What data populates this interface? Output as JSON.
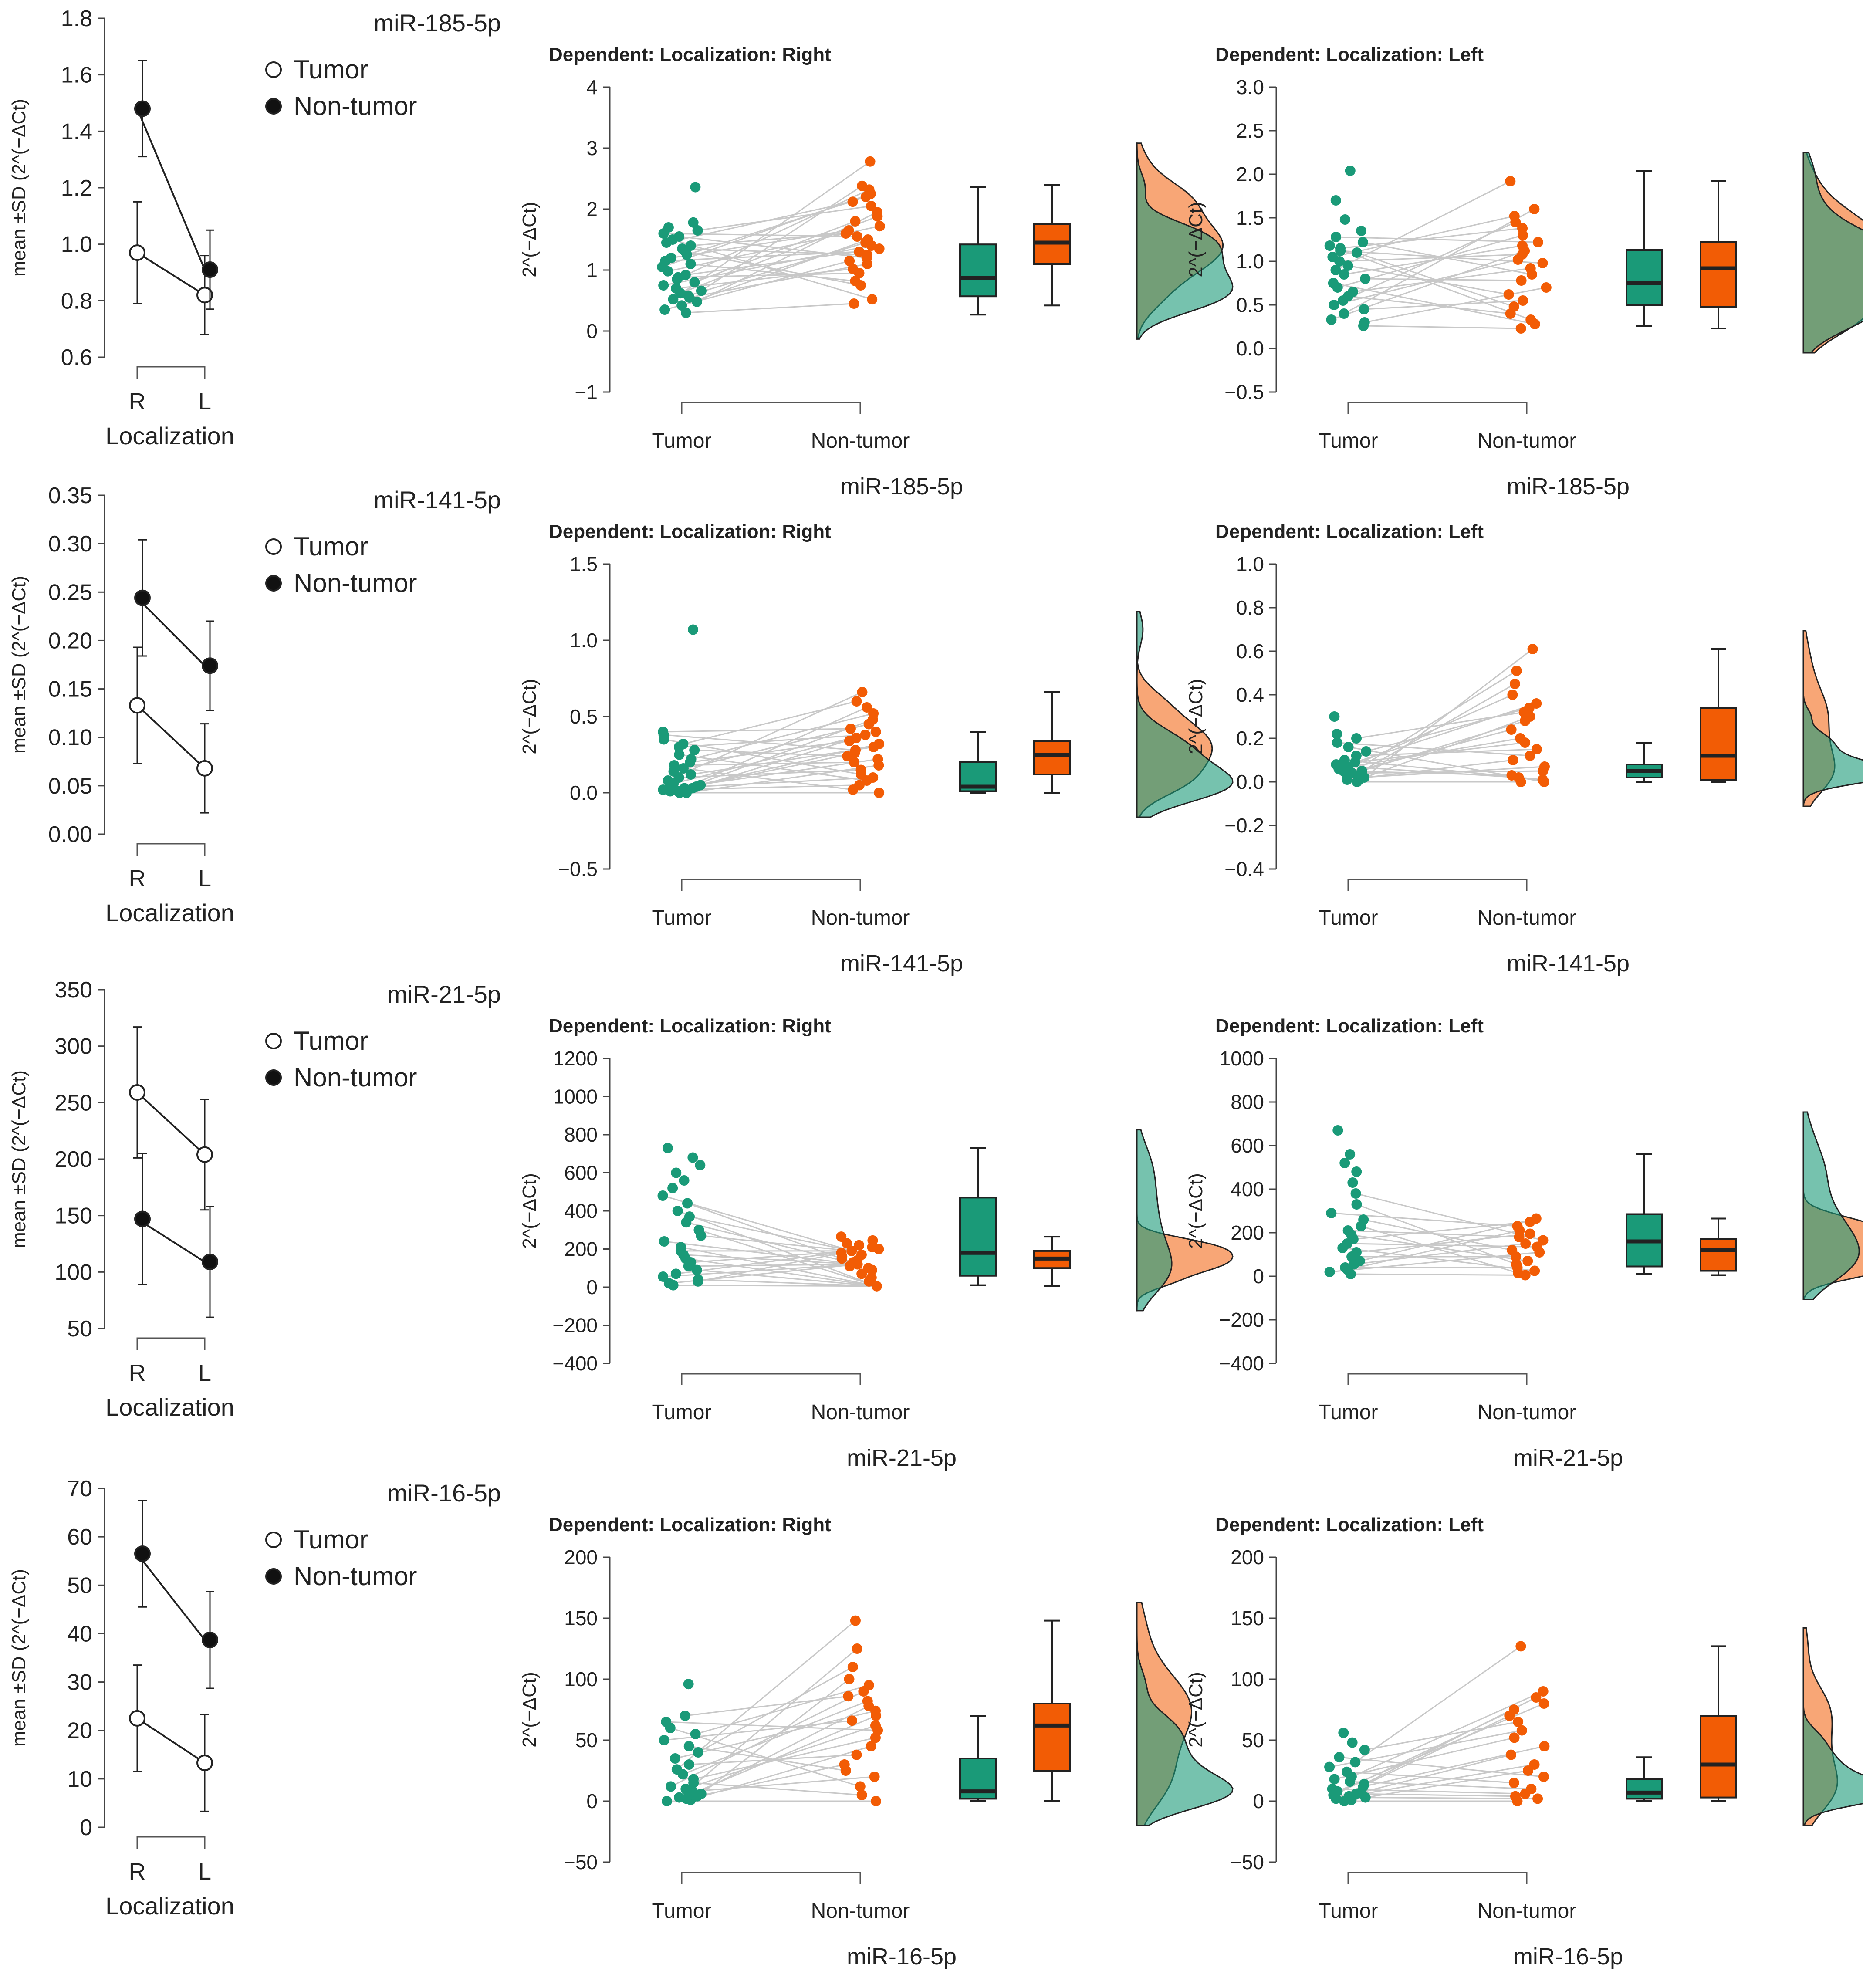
{
  "figure": {
    "colors": {
      "tumor": "#1a9a78",
      "tumor_dark": "#0f5f4a",
      "nontumor": "#f25c05",
      "nontumor_dark": "#8a3000",
      "line_gray": "#c8c8c8",
      "axis": "#555555",
      "overlap": "#a08050"
    }
  },
  "chart_data": [
    {
      "type": "line",
      "id": "r0-means",
      "mirna": "miR-185-5p",
      "ylabel": "mean ±SD (2^(−ΔCt)",
      "xlabel": "Localization",
      "categories": [
        "R",
        "L"
      ],
      "yticks": [
        "0.6",
        "0.8",
        "1.0",
        "1.2",
        "1.4",
        "1.6",
        "1.8"
      ],
      "ylim": [
        0.6,
        1.8
      ],
      "legend": [
        "Tumor",
        "Non-tumor"
      ],
      "series": [
        {
          "name": "Tumor",
          "mean": [
            0.97,
            0.82
          ],
          "sd": [
            0.18,
            0.14
          ]
        },
        {
          "name": "Non-tumor",
          "mean": [
            1.48,
            0.91
          ],
          "sd": [
            0.17,
            0.14
          ]
        }
      ]
    },
    {
      "type": "raincloud",
      "id": "r0-right",
      "title": "Dependent: Localization: Right",
      "ylabel": "2^(−ΔCt)",
      "xlabel": "miR-185-5p",
      "categories": [
        "Tumor",
        "Non-tumor"
      ],
      "yticks": [
        "−1",
        "0",
        "1",
        "2",
        "3",
        "4"
      ],
      "ylim": [
        -1,
        4
      ],
      "tumor": {
        "min": 0.27,
        "q1": 0.57,
        "median": 0.87,
        "q3": 1.42,
        "max": 2.36,
        "points": [
          0.3,
          0.35,
          0.42,
          0.48,
          0.52,
          0.55,
          0.58,
          0.62,
          0.66,
          0.7,
          0.75,
          0.8,
          0.85,
          0.88,
          0.92,
          0.98,
          1.05,
          1.1,
          1.15,
          1.2,
          1.25,
          1.3,
          1.35,
          1.4,
          1.45,
          1.5,
          1.55,
          1.6,
          1.65,
          1.7,
          1.78,
          2.36
        ]
      },
      "nontumor": {
        "min": 0.42,
        "q1": 1.1,
        "median": 1.45,
        "q3": 1.75,
        "max": 2.4,
        "points": [
          0.45,
          0.52,
          0.75,
          0.82,
          0.95,
          1.02,
          1.1,
          1.15,
          1.2,
          1.25,
          1.3,
          1.35,
          1.4,
          1.45,
          1.5,
          1.55,
          1.6,
          1.65,
          1.72,
          1.8,
          1.88,
          1.95,
          2.05,
          2.12,
          2.2,
          2.25,
          2.32,
          2.38,
          2.78
        ]
      }
    },
    {
      "type": "raincloud",
      "id": "r0-left",
      "title": "Dependent: Localization: Left",
      "ylabel": "2^(−ΔCt)",
      "xlabel": "miR-185-5p",
      "categories": [
        "Tumor",
        "Non-tumor"
      ],
      "yticks": [
        "−0.5",
        "0.0",
        "0.5",
        "1.0",
        "1.5",
        "2.0",
        "2.5",
        "3.0"
      ],
      "ylim": [
        -0.5,
        3.0
      ],
      "tumor": {
        "min": 0.26,
        "q1": 0.5,
        "median": 0.75,
        "q3": 1.13,
        "max": 2.04,
        "points": [
          0.26,
          0.3,
          0.33,
          0.4,
          0.45,
          0.5,
          0.55,
          0.6,
          0.65,
          0.7,
          0.75,
          0.8,
          0.85,
          0.9,
          0.95,
          1.0,
          1.05,
          1.1,
          1.12,
          1.15,
          1.18,
          1.22,
          1.28,
          1.35,
          1.48,
          1.7,
          2.04
        ]
      },
      "nontumor": {
        "min": 0.23,
        "q1": 0.48,
        "median": 0.92,
        "q3": 1.22,
        "max": 1.92,
        "points": [
          0.23,
          0.28,
          0.33,
          0.4,
          0.48,
          0.55,
          0.62,
          0.7,
          0.78,
          0.85,
          0.92,
          0.98,
          1.02,
          1.08,
          1.12,
          1.18,
          1.22,
          1.3,
          1.38,
          1.45,
          1.52,
          1.6,
          1.92
        ]
      }
    },
    {
      "type": "line",
      "id": "r1-means",
      "mirna": "miR-141-5p",
      "ylabel": "mean ±SD (2^(−ΔCt)",
      "xlabel": "Localization",
      "categories": [
        "R",
        "L"
      ],
      "yticks": [
        "0.00",
        "0.05",
        "0.10",
        "0.15",
        "0.20",
        "0.25",
        "0.30",
        "0.35"
      ],
      "ylim": [
        0.0,
        0.35
      ],
      "legend": [
        "Tumor",
        "Non-tumor"
      ],
      "series": [
        {
          "name": "Tumor",
          "mean": [
            0.133,
            0.068
          ],
          "sd": [
            0.06,
            0.046
          ]
        },
        {
          "name": "Non-tumor",
          "mean": [
            0.244,
            0.174
          ],
          "sd": [
            0.06,
            0.046
          ]
        }
      ]
    },
    {
      "type": "raincloud",
      "id": "r1-right",
      "title": "Dependent: Localization: Right",
      "ylabel": "2^(−ΔCt)",
      "xlabel": "miR-141-5p",
      "categories": [
        "Tumor",
        "Non-tumor"
      ],
      "yticks": [
        "−0.5",
        "0.0",
        "0.5",
        "1.0",
        "1.5"
      ],
      "ylim": [
        -0.5,
        1.5
      ],
      "tumor": {
        "min": 0.0,
        "q1": 0.01,
        "median": 0.04,
        "q3": 0.2,
        "max": 0.4,
        "points": [
          0.0,
          0.0,
          0.01,
          0.01,
          0.02,
          0.02,
          0.03,
          0.03,
          0.04,
          0.05,
          0.06,
          0.08,
          0.1,
          0.12,
          0.14,
          0.16,
          0.18,
          0.2,
          0.22,
          0.25,
          0.28,
          0.3,
          0.32,
          0.35,
          0.38,
          0.4,
          1.07
        ]
      },
      "nontumor": {
        "min": 0.0,
        "q1": 0.12,
        "median": 0.25,
        "q3": 0.34,
        "max": 0.66,
        "points": [
          0.0,
          0.02,
          0.05,
          0.08,
          0.1,
          0.12,
          0.15,
          0.18,
          0.2,
          0.22,
          0.24,
          0.26,
          0.28,
          0.3,
          0.32,
          0.34,
          0.36,
          0.38,
          0.4,
          0.42,
          0.45,
          0.48,
          0.52,
          0.56,
          0.6,
          0.66
        ]
      }
    },
    {
      "type": "raincloud",
      "id": "r1-left",
      "title": "Dependent: Localization: Left",
      "ylabel": "2^(−ΔCt)",
      "xlabel": "miR-141-5p",
      "categories": [
        "Tumor",
        "Non-tumor"
      ],
      "yticks": [
        "−0.4",
        "−0.2",
        "0.0",
        "0.2",
        "0.4",
        "0.6",
        "0.8",
        "1.0"
      ],
      "ylim": [
        -0.4,
        1.0
      ],
      "tumor": {
        "min": 0.0,
        "q1": 0.02,
        "median": 0.05,
        "q3": 0.08,
        "max": 0.18,
        "points": [
          0.0,
          0.01,
          0.01,
          0.02,
          0.02,
          0.03,
          0.03,
          0.04,
          0.04,
          0.05,
          0.05,
          0.06,
          0.06,
          0.07,
          0.08,
          0.09,
          0.1,
          0.12,
          0.14,
          0.16,
          0.18,
          0.2,
          0.22,
          0.3
        ]
      },
      "nontumor": {
        "min": 0.0,
        "q1": 0.01,
        "median": 0.12,
        "q3": 0.34,
        "max": 0.61,
        "points": [
          0.0,
          0.0,
          0.01,
          0.02,
          0.03,
          0.05,
          0.07,
          0.1,
          0.12,
          0.15,
          0.18,
          0.2,
          0.24,
          0.28,
          0.3,
          0.32,
          0.34,
          0.36,
          0.4,
          0.45,
          0.51,
          0.61
        ]
      }
    },
    {
      "type": "line",
      "id": "r2-means",
      "mirna": "miR-21-5p",
      "ylabel": "mean ±SD (2^(−ΔCt)",
      "xlabel": "Localization",
      "categories": [
        "R",
        "L"
      ],
      "yticks": [
        "50",
        "100",
        "150",
        "200",
        "250",
        "300",
        "350"
      ],
      "ylim": [
        50,
        350
      ],
      "legend": [
        "Tumor",
        "Non-tumor"
      ],
      "series": [
        {
          "name": "Tumor",
          "mean": [
            259,
            204
          ],
          "sd": [
            58,
            49
          ]
        },
        {
          "name": "Non-tumor",
          "mean": [
            147,
            109
          ],
          "sd": [
            58,
            49
          ]
        }
      ]
    },
    {
      "type": "raincloud",
      "id": "r2-right",
      "title": "Dependent: Localization: Right",
      "ylabel": "2^(−ΔCt)",
      "xlabel": "miR-21-5p",
      "categories": [
        "Tumor",
        "Non-tumor"
      ],
      "yticks": [
        "−400",
        "−200",
        "0",
        "200",
        "400",
        "600",
        "800",
        "1000",
        "1200"
      ],
      "ylim": [
        -400,
        1200
      ],
      "tumor": {
        "min": 10,
        "q1": 60,
        "median": 180,
        "q3": 470,
        "max": 730,
        "points": [
          10,
          20,
          30,
          40,
          55,
          70,
          90,
          110,
          130,
          150,
          170,
          190,
          210,
          240,
          270,
          300,
          340,
          370,
          400,
          440,
          480,
          520,
          560,
          600,
          640,
          680,
          730
        ]
      },
      "nontumor": {
        "min": 5,
        "q1": 100,
        "median": 150,
        "q3": 190,
        "max": 265,
        "points": [
          5,
          30,
          50,
          70,
          90,
          100,
          110,
          120,
          130,
          140,
          150,
          160,
          170,
          180,
          190,
          200,
          210,
          220,
          230,
          245,
          265
        ]
      }
    },
    {
      "type": "raincloud",
      "id": "r2-left",
      "title": "Dependent: Localization: Left",
      "ylabel": "2^(−ΔCt)",
      "xlabel": "miR-21-5p",
      "categories": [
        "Tumor",
        "Non-tumor"
      ],
      "yticks": [
        "−400",
        "−200",
        "0",
        "200",
        "400",
        "600",
        "800",
        "1000"
      ],
      "ylim": [
        -400,
        1000
      ],
      "tumor": {
        "min": 10,
        "q1": 45,
        "median": 160,
        "q3": 285,
        "max": 560,
        "points": [
          10,
          20,
          30,
          40,
          55,
          70,
          90,
          110,
          130,
          150,
          170,
          190,
          210,
          230,
          260,
          290,
          330,
          380,
          430,
          480,
          520,
          560,
          670
        ]
      },
      "nontumor": {
        "min": 5,
        "q1": 25,
        "median": 120,
        "q3": 170,
        "max": 265,
        "points": [
          5,
          15,
          25,
          40,
          55,
          70,
          90,
          110,
          120,
          135,
          150,
          165,
          180,
          195,
          210,
          230,
          250,
          265
        ]
      }
    },
    {
      "type": "line",
      "id": "r3-means",
      "mirna": "miR-16-5p",
      "ylabel": "mean ±SD (2^(−ΔCt)",
      "xlabel": "Localization",
      "categories": [
        "R",
        "L"
      ],
      "yticks": [
        "0",
        "10",
        "20",
        "30",
        "40",
        "50",
        "60",
        "70"
      ],
      "ylim": [
        0,
        70
      ],
      "legend": [
        "Tumor",
        "Non-tumor"
      ],
      "series": [
        {
          "name": "Tumor",
          "mean": [
            22.5,
            13.3
          ],
          "sd": [
            11,
            10
          ]
        },
        {
          "name": "Non-tumor",
          "mean": [
            56.5,
            38.7
          ],
          "sd": [
            11,
            10
          ]
        }
      ]
    },
    {
      "type": "raincloud",
      "id": "r3-right",
      "title": "Dependent: Localization: Right",
      "ylabel": "2^(−ΔCt)",
      "xlabel": "miR-16-5p",
      "categories": [
        "Tumor",
        "Non-tumor"
      ],
      "yticks": [
        "−50",
        "0",
        "50",
        "100",
        "150",
        "200"
      ],
      "ylim": [
        -50,
        200
      ],
      "tumor": {
        "min": 0,
        "q1": 2,
        "median": 8,
        "q3": 35,
        "max": 70,
        "points": [
          0,
          1,
          2,
          3,
          4,
          5,
          6,
          8,
          10,
          12,
          15,
          18,
          22,
          26,
          30,
          35,
          40,
          45,
          50,
          55,
          60,
          65,
          70,
          96
        ]
      },
      "nontumor": {
        "min": 0,
        "q1": 25,
        "median": 62,
        "q3": 80,
        "max": 148,
        "points": [
          0,
          5,
          12,
          20,
          25,
          30,
          38,
          45,
          52,
          58,
          62,
          66,
          70,
          74,
          78,
          82,
          86,
          90,
          95,
          100,
          110,
          125,
          148
        ]
      }
    },
    {
      "type": "raincloud",
      "id": "r3-left",
      "title": "Dependent: Localization: Left",
      "ylabel": "2^(−ΔCt)",
      "xlabel": "miR-16-5p",
      "categories": [
        "Tumor",
        "Non-tumor"
      ],
      "yticks": [
        "−50",
        "0",
        "50",
        "100",
        "150",
        "200"
      ],
      "ylim": [
        -50,
        200
      ],
      "tumor": {
        "min": 0,
        "q1": 2,
        "median": 7,
        "q3": 18,
        "max": 36,
        "points": [
          0,
          1,
          2,
          3,
          4,
          5,
          6,
          7,
          8,
          10,
          12,
          14,
          16,
          18,
          20,
          24,
          28,
          32,
          36,
          42,
          48,
          56
        ]
      },
      "nontumor": {
        "min": 0,
        "q1": 3,
        "median": 30,
        "q3": 70,
        "max": 127,
        "points": [
          0,
          2,
          4,
          6,
          10,
          15,
          20,
          25,
          30,
          38,
          45,
          52,
          58,
          65,
          70,
          75,
          80,
          85,
          90,
          127
        ]
      }
    }
  ]
}
